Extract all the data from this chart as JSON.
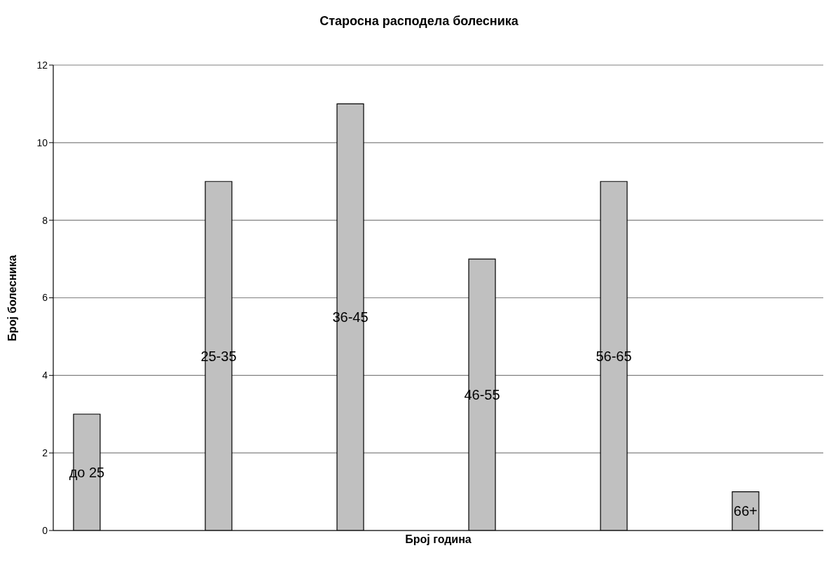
{
  "chart_data": {
    "type": "bar",
    "title": "Старосна расподела болесника",
    "xlabel": "Број година",
    "ylabel": "Број болесника",
    "categories": [
      "до 25",
      "25-35",
      "36-45",
      "46-55",
      "56-65",
      "66+"
    ],
    "values": [
      3,
      9,
      11,
      7,
      9,
      1
    ],
    "color": "#c0c0c0",
    "ylim": [
      0,
      12
    ],
    "yticks": [
      0,
      2,
      4,
      6,
      8,
      10,
      12
    ],
    "grid": "y",
    "tick_labels": "y"
  }
}
